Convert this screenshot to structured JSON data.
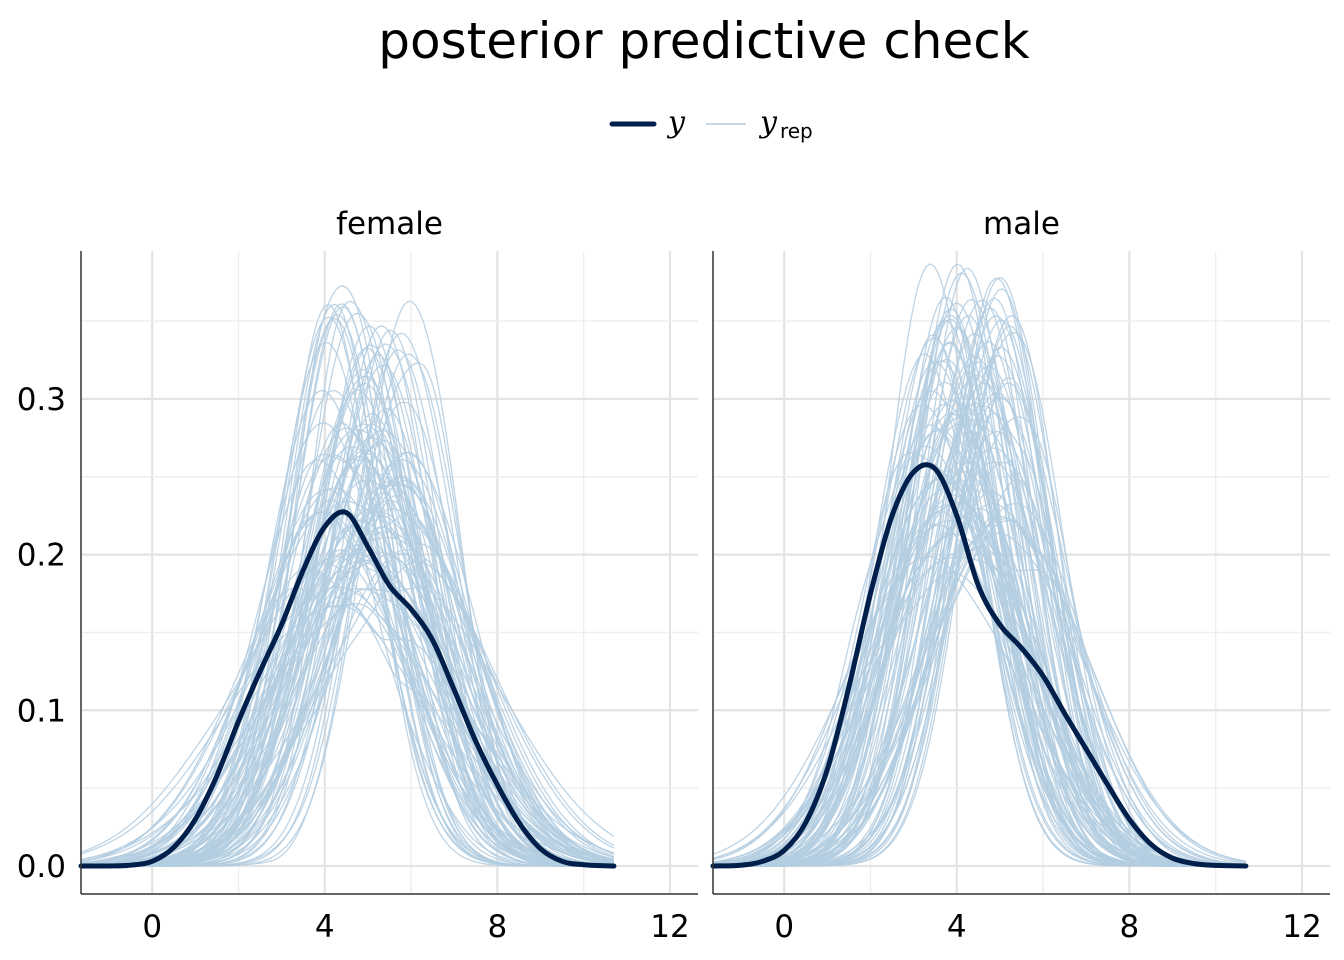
{
  "chart_data": {
    "type": "line",
    "title": "posterior predictive check",
    "xlabel": "",
    "ylabel": "",
    "xlim": [
      -1.65,
      12.65
    ],
    "ylim": [
      -0.018,
      0.395
    ],
    "x_ticks": [
      0,
      4,
      8,
      12
    ],
    "x_tick_labels": [
      "0",
      "4",
      "8",
      "12"
    ],
    "y_ticks": [
      0.0,
      0.1,
      0.2,
      0.3
    ],
    "y_tick_labels": [
      "0.0",
      "0.1",
      "0.2",
      "0.3"
    ],
    "grid": true,
    "legend": {
      "position": "top",
      "entries": [
        {
          "label": "y",
          "subscript": "",
          "color": "#011f4b"
        },
        {
          "label": "y",
          "subscript": "rep",
          "color": "#b3cde0"
        }
      ]
    },
    "colors": {
      "y": "#011f4b",
      "yrep": "#b3cde0"
    },
    "x_grid": [
      -1.65,
      -1.0,
      -0.5,
      0.0,
      0.5,
      1.0,
      1.5,
      2.0,
      2.5,
      3.0,
      3.5,
      4.0,
      4.5,
      5.0,
      5.5,
      6.0,
      6.5,
      7.0,
      7.5,
      8.0,
      8.5,
      9.0,
      9.5,
      10.0,
      10.7
    ],
    "panels": [
      {
        "strip": "female",
        "series": [
          {
            "name": "y",
            "y": [
              0.0,
              0.0,
              0.0005,
              0.003,
              0.012,
              0.03,
              0.058,
              0.093,
              0.125,
              0.155,
              0.19,
              0.218,
              0.227,
              0.205,
              0.18,
              0.165,
              0.145,
              0.113,
              0.08,
              0.052,
              0.028,
              0.011,
              0.003,
              0.0008,
              0.0
            ]
          }
        ],
        "yrep": {
          "count": 100,
          "peak_x_range": [
            3.9,
            6.0
          ],
          "peak_height_range": [
            0.165,
            0.365
          ],
          "x_range": [
            -1.65,
            10.7
          ]
        }
      },
      {
        "strip": "male",
        "series": [
          {
            "name": "y",
            "y": [
              0.0,
              0.0005,
              0.003,
              0.01,
              0.028,
              0.062,
              0.115,
              0.175,
              0.225,
              0.253,
              0.255,
              0.225,
              0.18,
              0.155,
              0.14,
              0.122,
              0.098,
              0.075,
              0.052,
              0.03,
              0.014,
              0.005,
              0.0015,
              0.0004,
              0.0
            ]
          }
        ],
        "yrep": {
          "count": 100,
          "peak_x_range": [
            3.3,
            5.3
          ],
          "peak_height_range": [
            0.2,
            0.375
          ],
          "x_range": [
            -1.65,
            10.7
          ]
        }
      }
    ]
  }
}
